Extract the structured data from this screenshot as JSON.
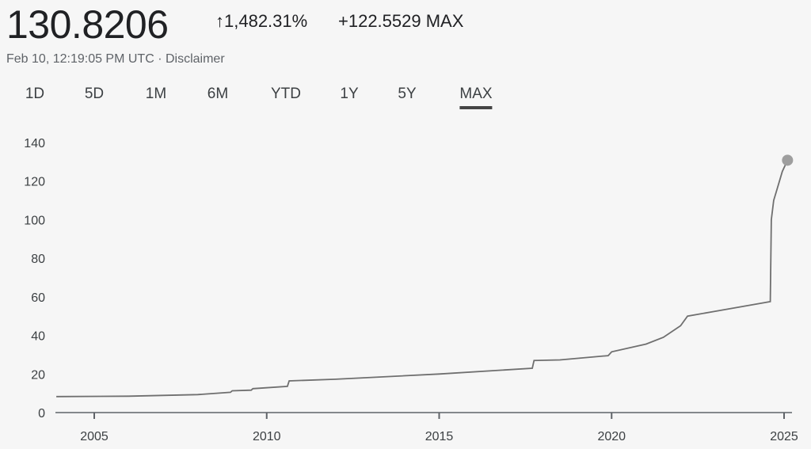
{
  "header": {
    "price": "130.8206",
    "change_arrow": "↑",
    "change_pct": "1,482.31%",
    "change_abs": "+122.5529",
    "range_label": "MAX",
    "timestamp": "Feb 10, 12:19:05 PM UTC",
    "separator": " · ",
    "disclaimer": "Disclaimer"
  },
  "tabs": [
    {
      "label": "1D"
    },
    {
      "label": "5D"
    },
    {
      "label": "1M"
    },
    {
      "label": "6M"
    },
    {
      "label": "YTD"
    },
    {
      "label": "1Y"
    },
    {
      "label": "5Y"
    },
    {
      "label": "MAX",
      "active": true
    }
  ],
  "colors": {
    "line": "#6f6f6f",
    "marker": "#9e9e9e",
    "axis": "#5f6368"
  },
  "chart_data": {
    "type": "line",
    "xlim": [
      2003.9,
      2025.3
    ],
    "ylim": [
      0,
      140
    ],
    "yticks": [
      "0",
      "20",
      "40",
      "60",
      "80",
      "100",
      "120",
      "140"
    ],
    "xticks": [
      "2005",
      "2010",
      "2015",
      "2020",
      "2025"
    ],
    "grid": false,
    "x": [
      2003.9,
      2006,
      2008,
      2008.95,
      2009.0,
      2009.55,
      2009.6,
      2010.6,
      2010.65,
      2012,
      2015,
      2017.7,
      2017.75,
      2018.5,
      2019.9,
      2020,
      2021,
      2021.5,
      2022,
      2022.2,
      2023,
      2024.6,
      2024.63,
      2024.7,
      2024.8,
      2024.95,
      2025.1
    ],
    "y": [
      8.3,
      8.5,
      9.3,
      10.5,
      11.3,
      11.6,
      12.4,
      13.6,
      16.4,
      17.3,
      20.0,
      23.0,
      27.0,
      27.3,
      29.5,
      31.5,
      35.5,
      39.0,
      45.0,
      50.0,
      52.5,
      57.5,
      100.0,
      110.0,
      116.0,
      125.0,
      130.82
    ]
  }
}
